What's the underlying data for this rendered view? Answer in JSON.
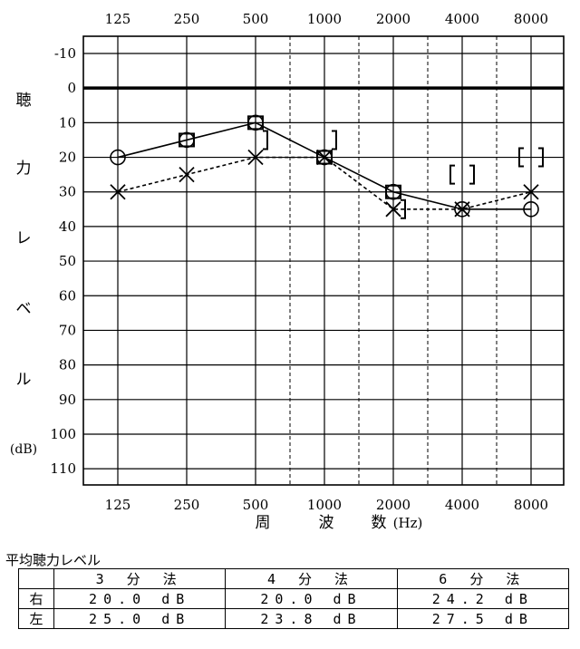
{
  "chart_data": {
    "type": "line",
    "title": "",
    "x_ticks": [
      "125",
      "250",
      "500",
      "1000",
      "2000",
      "4000",
      "8000"
    ],
    "y_ticks": [
      "-10",
      "0",
      "10",
      "20",
      "30",
      "40",
      "50",
      "60",
      "70",
      "80",
      "90",
      "100",
      "110"
    ],
    "ylim": [
      -10,
      110
    ],
    "y_inverted": true,
    "xlabel_chars": [
      "周",
      "波",
      "数"
    ],
    "xlabel_unit": "(Hz)",
    "ylabel_chars": [
      "聴",
      "力",
      "レ",
      "ベ",
      "ル"
    ],
    "ylabel_unit": "(dB)",
    "grid": true,
    "series": [
      {
        "marker": "circle",
        "line_style": "solid",
        "x": [
          "125",
          "250",
          "500",
          "1000",
          "2000",
          "4000",
          "8000"
        ],
        "values": [
          20,
          15,
          10,
          20,
          30,
          35,
          35
        ]
      },
      {
        "marker": "cross",
        "line_style": "dashed",
        "x": [
          "125",
          "250",
          "500",
          "1000",
          "2000",
          "4000",
          "8000"
        ],
        "values": [
          30,
          25,
          20,
          20,
          35,
          35,
          30
        ]
      }
    ],
    "bone_conduction": [
      {
        "marker": "square",
        "x": "250",
        "value": 15
      },
      {
        "marker": "square",
        "x": "500",
        "value": 10
      },
      {
        "marker": "square",
        "x": "1000",
        "value": 20
      },
      {
        "marker": "square",
        "x": "2000",
        "value": 30
      },
      {
        "marker": "right-bracket",
        "x": "500",
        "value": 15
      },
      {
        "marker": "right-bracket",
        "x": "1000",
        "value": 15
      },
      {
        "marker": "right-bracket",
        "x": "2000",
        "value": 35
      },
      {
        "marker": "left-bracket",
        "x": "4000",
        "value": 25
      },
      {
        "marker": "right-bracket",
        "x": "4000",
        "value": 25
      },
      {
        "marker": "left-bracket",
        "x": "8000",
        "value": 20
      },
      {
        "marker": "right-bracket",
        "x": "8000",
        "value": 20
      }
    ]
  },
  "average": {
    "title": "平均聴力レベル",
    "columns": [
      "3 分 法",
      "4 分 法",
      "6 分 法"
    ],
    "rows": [
      {
        "label": "右",
        "values": [
          "20.0 dB",
          "20.0 dB",
          "24.2 dB"
        ]
      },
      {
        "label": "左",
        "values": [
          "25.0 dB",
          "23.8 dB",
          "27.5 dB"
        ]
      }
    ]
  }
}
